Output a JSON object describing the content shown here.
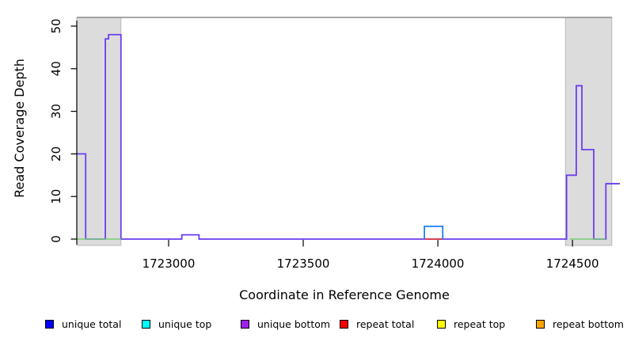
{
  "chart_data": {
    "type": "line",
    "subtype": "step-coverage",
    "title": "",
    "xlabel": "Coordinate in Reference Genome",
    "ylabel": "Read Coverage Depth",
    "xlim": [
      1722659,
      1724676
    ],
    "ylim": [
      0,
      52
    ],
    "x_ticks": [
      1723000,
      1723500,
      1724000,
      1724500
    ],
    "y_ticks": [
      0,
      10,
      20,
      30,
      40,
      50
    ],
    "grid": false,
    "legend_position": "bottom",
    "shaded_regions": [
      {
        "name": "repeat-region-left",
        "start": 1722659,
        "end": 1722823,
        "fill": "#dcdcdc"
      },
      {
        "name": "repeat-region-right",
        "start": 1724474,
        "end": 1724646,
        "fill": "#dcdcdc"
      }
    ],
    "series": [
      {
        "name": "unique bottom",
        "color": "#6b3df0",
        "width": 1.8,
        "segments": [
          [
            1722659,
            1722692,
            20
          ],
          [
            1722692,
            1722765,
            0
          ],
          [
            1722765,
            1722777,
            47
          ],
          [
            1722777,
            1722823,
            48
          ],
          [
            1722823,
            1723049,
            0
          ],
          [
            1723049,
            1723113,
            1
          ],
          [
            1723113,
            1724478,
            0
          ],
          [
            1724478,
            1724514,
            15
          ],
          [
            1724514,
            1724535,
            36
          ],
          [
            1724535,
            1724579,
            21
          ],
          [
            1724579,
            1724624,
            0
          ],
          [
            1724624,
            1724676,
            13
          ]
        ]
      },
      {
        "name": "baseline green",
        "color": "#77cc77",
        "width": 1.5,
        "segments": [
          [
            1722659,
            1722823,
            0
          ],
          [
            1724490,
            1724623,
            0
          ]
        ]
      },
      {
        "name": "repeat total",
        "color": "#ee3124",
        "width": 1.6,
        "segments": [
          [
            1723950,
            1724018,
            0
          ]
        ]
      },
      {
        "name": "unique total",
        "color": "#1d7fff",
        "width": 1.8,
        "segments": [
          [
            1723950,
            1724018,
            3
          ]
        ]
      }
    ],
    "legend": [
      {
        "label": "unique total",
        "color": "#0000ff"
      },
      {
        "label": "unique top",
        "color": "#00ffff"
      },
      {
        "label": "unique bottom",
        "color": "#a020f0"
      },
      {
        "label": "repeat total",
        "color": "#ff0000"
      },
      {
        "label": "repeat top",
        "color": "#ffff00"
      },
      {
        "label": "repeat bottom",
        "color": "#ffa500"
      }
    ],
    "frame": {
      "top_line_color": "#8a8a8a",
      "region_border": "#b9b9b9",
      "axis_color": "#000000"
    }
  }
}
